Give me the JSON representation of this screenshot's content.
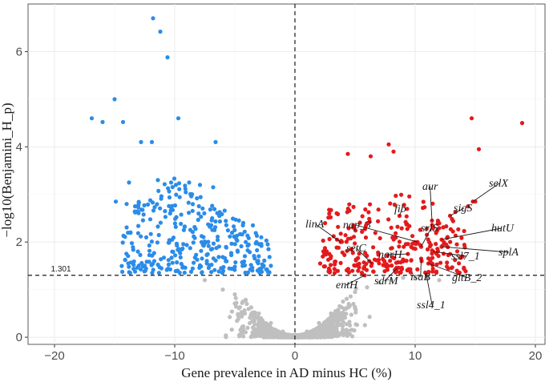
{
  "chart_data": {
    "type": "scatter",
    "xlabel": "Gene prevalence in AD minus HC (%)",
    "ylabel": "−log10(Benjamini_H_p)",
    "xlim": [
      -22.2,
      20.8
    ],
    "ylim": [
      -0.15,
      7.0
    ],
    "x_ticks": [
      "−20",
      "−10",
      "0",
      "10",
      "20"
    ],
    "y_ticks": [
      "0",
      "2",
      "4",
      "6"
    ],
    "threshold_label": "1.301",
    "threshold_y": 1.301,
    "vline_x": 0,
    "grid": true,
    "legend": "none",
    "colors": {
      "depleted": "#2b8ce8",
      "enriched": "#e31a1c",
      "nonsignificant": "#bfbfbf",
      "grid": "#ebebeb",
      "axis": "#333333"
    },
    "series": [
      {
        "key": "depleted",
        "points": [
          [
            -11.8,
            6.7
          ],
          [
            -11.2,
            6.42
          ],
          [
            -10.6,
            5.88
          ],
          [
            -15.0,
            5.0
          ],
          [
            -16.9,
            4.6
          ],
          [
            -16.0,
            4.52
          ],
          [
            -14.3,
            4.52
          ],
          [
            -9.7,
            4.6
          ],
          [
            -12.8,
            4.1
          ],
          [
            -11.9,
            4.1
          ],
          [
            -6.6,
            4.1
          ],
          [
            -11.4,
            3.3
          ],
          [
            -10.3,
            3.25
          ],
          [
            -13.8,
            3.25
          ],
          [
            -9.9,
            3.2
          ],
          [
            -8.8,
            3.25
          ],
          [
            -7.9,
            3.2
          ],
          [
            -6.8,
            3.15
          ],
          [
            -14.9,
            2.85
          ],
          [
            -14.0,
            2.8
          ],
          [
            -13.3,
            2.75
          ],
          [
            -4.3,
            2.4
          ],
          [
            -3.5,
            2.35
          ],
          [
            -3.2,
            2.0
          ],
          [
            -2.8,
            2.1
          ],
          [
            -2.2,
            1.85
          ],
          [
            -2.0,
            1.5
          ],
          [
            -2.6,
            1.5
          ]
        ]
      },
      {
        "key": "enriched",
        "points": [
          [
            18.9,
            4.5
          ],
          [
            14.7,
            4.6
          ],
          [
            15.3,
            3.95
          ],
          [
            7.8,
            4.05
          ],
          [
            8.2,
            3.9
          ],
          [
            4.4,
            3.85
          ],
          [
            6.3,
            3.8
          ],
          [
            15.0,
            2.85
          ],
          [
            14.4,
            2.75
          ],
          [
            2.1,
            1.55
          ],
          [
            3.0,
            1.7
          ],
          [
            3.5,
            2.05
          ],
          [
            3.3,
            1.35
          ]
        ]
      },
      {
        "key": "nonsignificant",
        "points": [
          [
            -7.5,
            1.2
          ],
          [
            -6.0,
            1.0
          ],
          [
            -5.0,
            0.9
          ],
          [
            -4.0,
            0.7
          ],
          [
            -3.0,
            0.5
          ],
          [
            -2.0,
            0.3
          ],
          [
            -1.0,
            0.12
          ],
          [
            0.0,
            0.05
          ],
          [
            1.0,
            0.12
          ],
          [
            2.0,
            0.3
          ],
          [
            3.0,
            0.5
          ],
          [
            4.0,
            0.75
          ],
          [
            5.0,
            0.95
          ],
          [
            6.0,
            1.05
          ],
          [
            7.0,
            1.15
          ],
          [
            8.0,
            1.2
          ],
          [
            9.0,
            1.25
          ],
          [
            10.0,
            1.25
          ],
          [
            11.0,
            1.25
          ],
          [
            12.0,
            1.2
          ]
        ]
      }
    ],
    "annotations": [
      {
        "label": "selX",
        "x": 14.8,
        "y": 2.85
      },
      {
        "label": "aur",
        "x": 11.4,
        "y": 2.45
      },
      {
        "label": "sigS",
        "x": 12.9,
        "y": 2.55
      },
      {
        "label": "fib",
        "x": 8.7,
        "y": 2.55
      },
      {
        "label": "hutU",
        "x": 12.2,
        "y": 2.05
      },
      {
        "label": "linA",
        "x": 3.8,
        "y": 2.0
      },
      {
        "label": "nap_3",
        "x": 10.2,
        "y": 2.0
      },
      {
        "label": "srlS",
        "x": 10.5,
        "y": 1.9
      },
      {
        "label": "ssl7_1",
        "x": 11.5,
        "y": 1.8
      },
      {
        "label": "splA",
        "x": 12.2,
        "y": 1.9
      },
      {
        "label": "setC",
        "x": 6.4,
        "y": 1.55
      },
      {
        "label": "narH",
        "x": 9.4,
        "y": 1.75
      },
      {
        "label": "entH",
        "x": 5.8,
        "y": 1.3
      },
      {
        "label": "sdrM",
        "x": 8.5,
        "y": 1.45
      },
      {
        "label": "isaB",
        "x": 10.5,
        "y": 1.65
      },
      {
        "label": "gltB_2",
        "x": 11.1,
        "y": 1.55
      },
      {
        "label": "ssl4_1",
        "x": 10.9,
        "y": 1.35
      }
    ]
  }
}
